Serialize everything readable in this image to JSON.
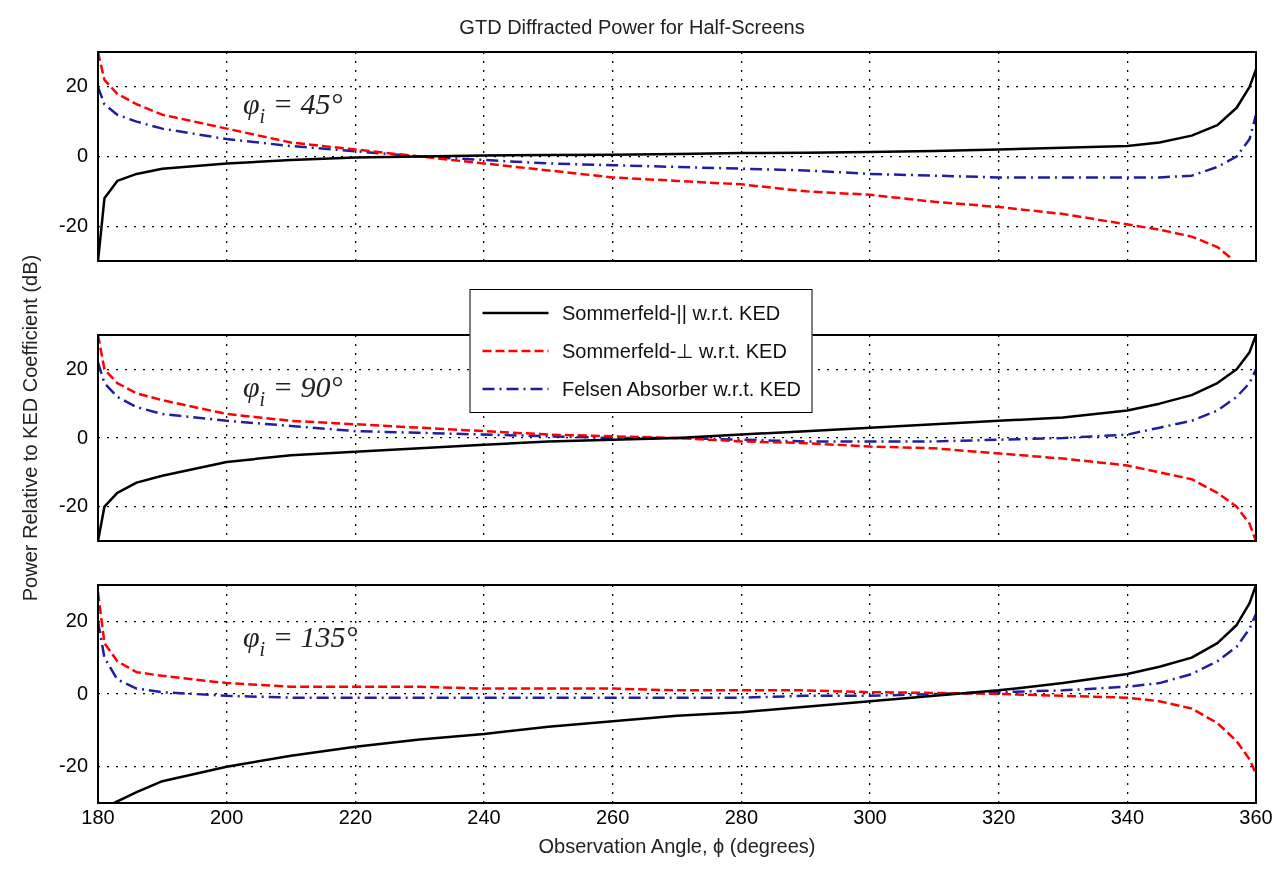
{
  "chart_data": [
    {
      "type": "line",
      "title": "GTD Diffracted Power for Half-Screens",
      "annotations": [
        "φ$_{i}$ = 45°"
      ],
      "x": [
        180,
        181,
        183,
        186,
        190,
        200,
        210,
        220,
        230,
        240,
        250,
        260,
        270,
        280,
        290,
        300,
        310,
        320,
        330,
        340,
        345,
        350,
        354,
        357,
        359,
        360
      ],
      "series": [
        {
          "color": "#000000",
          "line_style": "solid",
          "values": [
            -30,
            -12,
            -7,
            -5,
            -3.5,
            -2,
            -1,
            -0.3,
            0,
            0.3,
            0.4,
            0.5,
            0.7,
            1,
            1.1,
            1.3,
            1.6,
            2,
            2.5,
            3,
            4,
            6,
            9,
            14,
            20,
            25
          ]
        },
        {
          "color": "#ff0000",
          "line_style": "dashed",
          "x": [
            180,
            181,
            183,
            186,
            190,
            200,
            210,
            220,
            230,
            240,
            250,
            260,
            270,
            280,
            290,
            300,
            310,
            320,
            330,
            340,
            345,
            350,
            354,
            356
          ],
          "values": [
            30,
            22,
            18,
            15,
            12,
            8,
            4,
            2,
            0,
            -2,
            -4,
            -6,
            -7,
            -8,
            -10,
            -11,
            -13,
            -14.5,
            -16.5,
            -19.5,
            -21,
            -23,
            -26,
            -29
          ]
        },
        {
          "color": "#1f1fa0",
          "line_style": "dashdot",
          "values": [
            20,
            15,
            12,
            10,
            8,
            5,
            3,
            1.5,
            0,
            -1,
            -2,
            -2.5,
            -3,
            -3.5,
            -4,
            -5,
            -5.5,
            -6,
            -6,
            -6,
            -6,
            -5.5,
            -3,
            0,
            5,
            12
          ]
        }
      ],
      "xlim": [
        180,
        360
      ],
      "xticks": [
        180,
        200,
        220,
        240,
        260,
        280,
        300,
        320,
        340,
        360
      ],
      "ylim": [
        -30,
        30
      ],
      "yticks": [
        -20,
        0,
        20
      ],
      "grid": true,
      "marker": "none",
      "tick_labels": "y"
    },
    {
      "type": "line",
      "ylabel": "Power Relative to KED Coefficient (dB)",
      "annotations": [
        "φ$_{i}$ = 90°"
      ],
      "x": [
        180,
        181,
        183,
        186,
        190,
        200,
        210,
        220,
        230,
        240,
        250,
        260,
        270,
        280,
        290,
        300,
        310,
        320,
        330,
        340,
        345,
        350,
        354,
        357,
        359,
        360
      ],
      "series": [
        {
          "name": "Sommerfeld-|| w.r.t. KED",
          "color": "#000000",
          "line_style": "solid",
          "values": [
            -30,
            -20,
            -16,
            -13,
            -11,
            -7,
            -5,
            -4,
            -3,
            -2,
            -1,
            -0.5,
            0,
            1,
            2,
            3,
            4,
            5,
            6,
            8,
            10,
            12.5,
            16,
            20,
            25,
            30
          ]
        },
        {
          "name": "Sommerfeld-⊥ w.r.t. KED",
          "color": "#ff0000",
          "line_style": "dashed",
          "values": [
            30,
            20,
            16,
            13,
            11,
            7,
            5,
            4,
            3,
            2,
            1,
            0.5,
            0,
            -1,
            -1.5,
            -2.5,
            -3,
            -4.5,
            -6,
            -8,
            -10,
            -12,
            -16,
            -20,
            -25,
            -30
          ]
        },
        {
          "name": "Felsen Absorber w.r.t. KED",
          "color": "#1f1fa0",
          "line_style": "dashdot",
          "values": [
            22,
            16,
            12,
            9,
            7,
            5,
            3.5,
            2,
            1.5,
            1,
            0.5,
            0,
            0,
            -0.5,
            -1,
            -1,
            -1,
            -0.5,
            0,
            1,
            3,
            5,
            8,
            12,
            16,
            20
          ]
        }
      ],
      "xlim": [
        180,
        360
      ],
      "xticks": [
        180,
        200,
        220,
        240,
        260,
        280,
        300,
        320,
        340,
        360
      ],
      "ylim": [
        -30,
        30
      ],
      "yticks": [
        -20,
        0,
        20
      ],
      "grid": true,
      "marker": "none",
      "legend": "top",
      "tick_labels": "y"
    },
    {
      "type": "line",
      "xlabel": "Observation Angle, ϕ (degrees)",
      "annotations": [
        "φ$_{i}$ = 135°"
      ],
      "x": [
        180,
        181,
        183,
        186,
        190,
        200,
        210,
        220,
        230,
        240,
        250,
        260,
        270,
        280,
        290,
        300,
        310,
        320,
        330,
        340,
        345,
        350,
        354,
        357,
        359,
        360
      ],
      "series": [
        {
          "color": "#000000",
          "line_style": "solid",
          "x": [
            182.5,
            186,
            190,
            200,
            210,
            220,
            230,
            240,
            250,
            260,
            270,
            280,
            290,
            300,
            310,
            320,
            330,
            340,
            345,
            350,
            354,
            357,
            359,
            360
          ],
          "values": [
            -30,
            -27,
            -24,
            -20,
            -17,
            -14.5,
            -12.5,
            -11,
            -9,
            -7.5,
            -6,
            -5,
            -3.5,
            -2,
            -0.5,
            1,
            3,
            5.5,
            7.5,
            10,
            14,
            19,
            25,
            30
          ]
        },
        {
          "color": "#ff0000",
          "line_style": "dashed",
          "values": [
            28,
            14,
            9,
            6,
            5,
            3,
            2,
            2,
            2,
            1.5,
            1.5,
            1.5,
            1,
            1,
            1,
            0.5,
            0.3,
            0,
            -0.5,
            -1,
            -2,
            -4,
            -8,
            -13,
            -18,
            -22
          ]
        },
        {
          "color": "#1f1fa0",
          "line_style": "dashdot",
          "values": [
            20,
            10,
            4,
            1.5,
            0.5,
            -0.5,
            -1,
            -1,
            -1,
            -1,
            -1,
            -1,
            -1,
            -1,
            -0.5,
            -0.5,
            0,
            0.5,
            1,
            2,
            3,
            5.5,
            9,
            13,
            18,
            22
          ]
        }
      ],
      "xlim": [
        180,
        360
      ],
      "xticks": [
        180,
        200,
        220,
        240,
        260,
        280,
        300,
        320,
        340,
        360
      ],
      "ylim": [
        -30,
        30
      ],
      "yticks": [
        -20,
        0,
        20
      ],
      "grid": true,
      "marker": "none"
    }
  ]
}
